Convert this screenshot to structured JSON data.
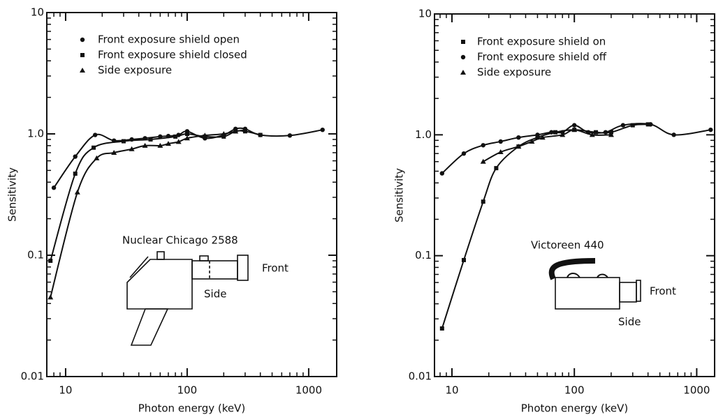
{
  "chart_data": [
    {
      "type": "line",
      "x_label": "Photon energy (keV)",
      "y_label": "Sensitivity",
      "log_x": true,
      "log_y": true,
      "legend": "upper left",
      "xlim": [
        7,
        1700
      ],
      "ylim": [
        0.01,
        10
      ],
      "xticks": [
        10,
        100,
        1000
      ],
      "yticks": [
        0.01,
        0.1,
        {
          "value": 1,
          "label": "1.0"
        },
        10
      ],
      "annotations": [
        "Nuclear Chicago  2588",
        "Front",
        "Side"
      ],
      "series": [
        {
          "name": "Front exposure shield open",
          "marker": "circle",
          "color": "#111",
          "x": [
            8,
            12,
            17.5,
            25,
            35,
            45,
            60,
            70,
            85,
            100,
            140,
            200,
            250,
            300,
            400,
            700,
            1300
          ],
          "values": [
            0.36,
            0.65,
            0.98,
            0.88,
            0.9,
            0.92,
            0.95,
            0.96,
            0.98,
            1.05,
            0.92,
            0.98,
            1.1,
            1.1,
            0.98,
            0.97,
            1.08
          ]
        },
        {
          "name": "Front exposure shield closed",
          "marker": "square",
          "color": "#111",
          "x": [
            7.5,
            12,
            17,
            30,
            50,
            80,
            100,
            140,
            200,
            250,
            300,
            400
          ],
          "values": [
            0.09,
            0.47,
            0.77,
            0.87,
            0.9,
            0.95,
            1.0,
            0.95,
            0.95,
            1.05,
            1.05,
            0.98
          ]
        },
        {
          "name": "Side exposure",
          "marker": "triangle",
          "color": "#111",
          "x": [
            7.5,
            12.5,
            18,
            25,
            35,
            45,
            60,
            70,
            85,
            100,
            140,
            200,
            250,
            300
          ],
          "values": [
            0.045,
            0.33,
            0.63,
            0.7,
            0.75,
            0.8,
            0.8,
            0.83,
            0.86,
            0.92,
            0.97,
            1.0,
            1.05,
            1.08
          ]
        }
      ]
    },
    {
      "type": "line",
      "x_label": "Photon energy (keV)",
      "y_label": "Sensitivity",
      "log_x": true,
      "log_y": true,
      "legend": "upper left",
      "xlim": [
        7.2,
        1400
      ],
      "ylim": [
        0.01,
        10
      ],
      "xticks": [
        10,
        100,
        1000
      ],
      "yticks": [
        0.01,
        0.1,
        {
          "value": 1,
          "label": "1.0"
        },
        10
      ],
      "annotations": [
        "Victoreen   440",
        "Front",
        "Side"
      ],
      "series": [
        {
          "name": "Front exposure shield on",
          "marker": "square",
          "color": "#111",
          "x": [
            8.3,
            12.5,
            18,
            23,
            35,
            50,
            70,
            100,
            150,
            200,
            300,
            400
          ],
          "values": [
            0.025,
            0.092,
            0.28,
            0.53,
            0.8,
            0.95,
            1.05,
            1.1,
            1.05,
            1.05,
            1.2,
            1.22
          ]
        },
        {
          "name": "Front exposure shield off",
          "marker": "circle",
          "color": "#111",
          "x": [
            8.3,
            12.5,
            18,
            25,
            35,
            50,
            65,
            80,
            100,
            130,
            180,
            250,
            420,
            650,
            1300
          ],
          "values": [
            0.48,
            0.7,
            0.82,
            0.88,
            0.95,
            1.0,
            1.05,
            1.05,
            1.2,
            1.05,
            1.05,
            1.2,
            1.22,
            1.0,
            1.1
          ]
        },
        {
          "name": "Side exposure",
          "marker": "triangle",
          "color": "#111",
          "x": [
            18,
            25,
            35,
            45,
            55,
            80,
            100,
            140,
            200
          ],
          "values": [
            0.6,
            0.72,
            0.8,
            0.88,
            0.95,
            1.0,
            1.1,
            1.0,
            1.0
          ]
        }
      ]
    }
  ]
}
